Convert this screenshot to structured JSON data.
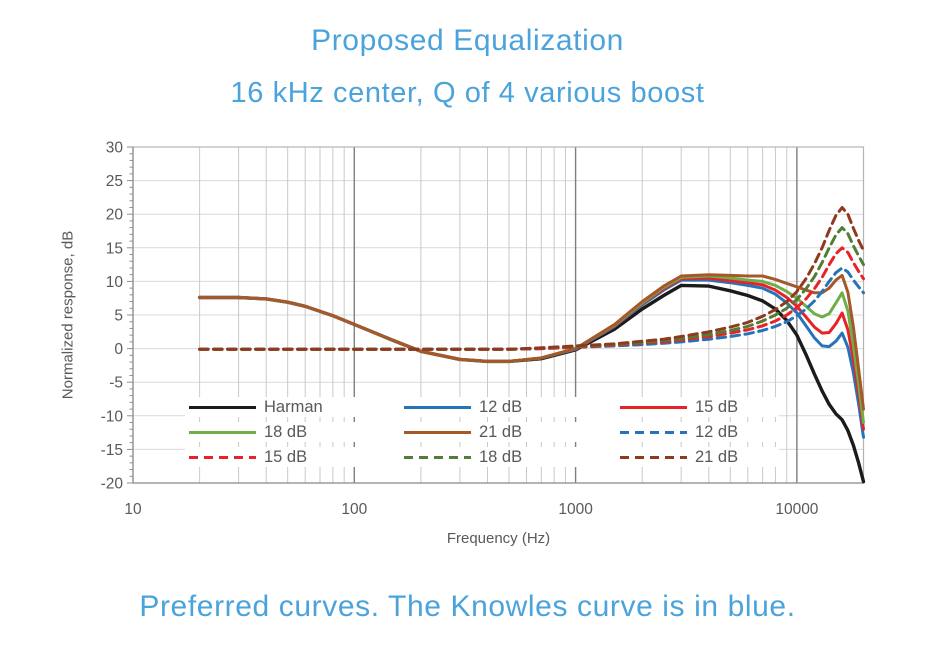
{
  "header": {
    "title": "Proposed Equalization",
    "subtitle": "16 kHz center, Q of 4 various boost",
    "color": "#4ba3dc"
  },
  "caption": {
    "text": "Preferred curves. The Knowles curve is in blue.",
    "color": "#4ba3dc"
  },
  "chart_data": {
    "type": "line",
    "xlabel": "Frequency (Hz)",
    "ylabel": "Normalized response, dB",
    "x_scale": "log",
    "xlim": [
      10,
      20000
    ],
    "ylim": [
      -20,
      30
    ],
    "x_ticks": [
      10,
      100,
      1000,
      10000
    ],
    "y_ticks": [
      30,
      25,
      20,
      15,
      10,
      5,
      0,
      -5,
      -10,
      -15,
      -20
    ],
    "grid": true,
    "legend_position": "inside-bottom-left",
    "axis_text_color": "#595959",
    "grid_minor_color": "#c9c9c9",
    "grid_major_color": "#7f7f7f",
    "grid_h_color": "#d9d9d9",
    "border_color": "#b3b3b3",
    "x": [
      20,
      30,
      40,
      50,
      60,
      80,
      100,
      150,
      200,
      300,
      400,
      500,
      700,
      1000,
      1500,
      2000,
      2500,
      3000,
      4000,
      5000,
      6000,
      7000,
      8000,
      9000,
      10000,
      11000,
      12000,
      13000,
      14000,
      15000,
      16000,
      17000,
      18000,
      19000,
      20000
    ],
    "series": [
      {
        "name": "Harman",
        "style": "solid",
        "color": "#1b1b1b",
        "width": 3.4,
        "values": [
          7.6,
          7.6,
          7.4,
          6.9,
          6.3,
          4.9,
          3.6,
          1.2,
          -0.4,
          -1.6,
          -1.9,
          -1.9,
          -1.5,
          -0.2,
          2.9,
          5.9,
          7.9,
          9.4,
          9.3,
          8.6,
          7.9,
          7.1,
          5.9,
          4.2,
          2.0,
          -0.9,
          -3.8,
          -6.3,
          -8.3,
          -9.7,
          -10.6,
          -12.2,
          -14.4,
          -17.0,
          -19.8
        ]
      },
      {
        "name": "12 dB",
        "style": "solid",
        "color": "#2673b9",
        "width": 3,
        "values": [
          7.6,
          7.6,
          7.4,
          6.9,
          6.3,
          4.9,
          3.6,
          1.2,
          -0.4,
          -1.6,
          -1.9,
          -1.9,
          -1.4,
          -0.1,
          3.3,
          6.5,
          8.7,
          10.2,
          10.2,
          9.8,
          9.4,
          9.0,
          8.1,
          6.8,
          5.3,
          3.4,
          1.6,
          0.4,
          0.3,
          1.1,
          2.3,
          0.2,
          -3.6,
          -8.2,
          -13.2
        ]
      },
      {
        "name": "15 dB",
        "style": "solid",
        "color": "#e82227",
        "width": 3,
        "values": [
          7.6,
          7.6,
          7.4,
          6.9,
          6.3,
          4.9,
          3.6,
          1.2,
          -0.4,
          -1.6,
          -1.9,
          -1.9,
          -1.4,
          0.0,
          3.4,
          6.7,
          8.9,
          10.4,
          10.5,
          10.1,
          9.8,
          9.5,
          8.7,
          7.6,
          6.3,
          4.7,
          3.2,
          2.3,
          2.4,
          3.7,
          5.3,
          2.8,
          -1.6,
          -6.6,
          -12.0
        ]
      },
      {
        "name": "18 dB",
        "style": "solid",
        "color": "#6fae4a",
        "width": 3,
        "values": [
          7.6,
          7.6,
          7.4,
          6.9,
          6.3,
          4.9,
          3.6,
          1.2,
          -0.4,
          -1.6,
          -1.9,
          -1.9,
          -1.4,
          0.0,
          3.5,
          6.8,
          9.1,
          10.6,
          10.8,
          10.5,
          10.2,
          10.0,
          9.4,
          8.5,
          7.5,
          6.3,
          5.2,
          4.7,
          5.2,
          6.8,
          8.3,
          5.6,
          0.4,
          -5.2,
          -11.0
        ]
      },
      {
        "name": "21 dB",
        "style": "solid",
        "color": "#a5592a",
        "width": 3,
        "values": [
          7.6,
          7.6,
          7.4,
          6.9,
          6.3,
          4.9,
          3.6,
          1.2,
          -0.4,
          -1.6,
          -1.9,
          -1.9,
          -1.4,
          0.0,
          3.6,
          7.0,
          9.3,
          10.8,
          11.0,
          10.9,
          10.8,
          10.8,
          10.3,
          9.7,
          9.2,
          8.7,
          8.3,
          8.3,
          9.0,
          10.2,
          10.9,
          8.4,
          3.2,
          -3.0,
          -9.0
        ]
      },
      {
        "name": "12 dB",
        "style": "dashed",
        "color": "#2673b9",
        "width": 3,
        "values": [
          -0.1,
          -0.1,
          -0.1,
          -0.1,
          -0.1,
          -0.1,
          -0.1,
          -0.1,
          -0.1,
          -0.1,
          -0.1,
          -0.1,
          0.0,
          0.2,
          0.4,
          0.6,
          0.8,
          1.0,
          1.4,
          1.8,
          2.2,
          2.7,
          3.3,
          4.0,
          4.9,
          5.9,
          7.1,
          8.5,
          10.0,
          11.3,
          12.0,
          11.4,
          10.2,
          9.2,
          8.3
        ]
      },
      {
        "name": "15 dB",
        "style": "dashed",
        "color": "#e82227",
        "width": 3,
        "values": [
          -0.1,
          -0.1,
          -0.1,
          -0.1,
          -0.1,
          -0.1,
          -0.1,
          -0.1,
          -0.1,
          -0.1,
          -0.1,
          -0.1,
          0.0,
          0.2,
          0.5,
          0.8,
          1.0,
          1.3,
          1.8,
          2.3,
          2.8,
          3.4,
          4.1,
          5.0,
          6.1,
          7.4,
          8.9,
          10.6,
          12.5,
          14.1,
          15.0,
          14.3,
          12.8,
          11.5,
          10.4
        ]
      },
      {
        "name": "18 dB",
        "style": "dashed",
        "color": "#507e36",
        "width": 3,
        "values": [
          -0.1,
          -0.1,
          -0.1,
          -0.1,
          -0.1,
          -0.1,
          -0.1,
          -0.1,
          -0.1,
          -0.1,
          -0.1,
          -0.1,
          0.1,
          0.3,
          0.6,
          0.9,
          1.2,
          1.5,
          2.1,
          2.7,
          3.3,
          4.1,
          5.0,
          6.0,
          7.3,
          8.9,
          10.7,
          12.8,
          15.0,
          16.9,
          18.0,
          17.1,
          15.3,
          13.8,
          12.5
        ]
      },
      {
        "name": "21 dB",
        "style": "dashed",
        "color": "#8e3a1e",
        "width": 3,
        "values": [
          -0.1,
          -0.1,
          -0.1,
          -0.1,
          -0.1,
          -0.1,
          -0.1,
          -0.1,
          -0.1,
          -0.1,
          -0.1,
          -0.1,
          0.1,
          0.4,
          0.7,
          1.1,
          1.4,
          1.8,
          2.5,
          3.2,
          3.9,
          4.8,
          5.8,
          7.0,
          8.5,
          10.4,
          12.6,
          15.0,
          17.6,
          19.8,
          21.0,
          20.0,
          17.9,
          16.1,
          14.6
        ]
      }
    ]
  },
  "legend": {
    "items": [
      {
        "label": "Harman",
        "style": "solid",
        "color": "#1b1b1b"
      },
      {
        "label": "12 dB",
        "style": "solid",
        "color": "#2673b9"
      },
      {
        "label": "15 dB",
        "style": "solid",
        "color": "#e82227"
      },
      {
        "label": "18 dB",
        "style": "solid",
        "color": "#6fae4a"
      },
      {
        "label": "21 dB",
        "style": "solid",
        "color": "#a5592a"
      },
      {
        "label": "12 dB",
        "style": "dashed",
        "color": "#2673b9"
      },
      {
        "label": "15 dB",
        "style": "dashed",
        "color": "#e82227"
      },
      {
        "label": "18 dB",
        "style": "dashed",
        "color": "#507e36"
      },
      {
        "label": "21 dB",
        "style": "dashed",
        "color": "#8e3a1e"
      }
    ]
  }
}
